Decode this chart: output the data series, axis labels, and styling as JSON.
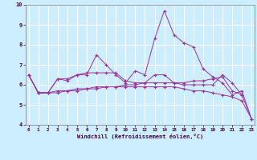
{
  "xlabel": "Windchill (Refroidissement éolien,°C)",
  "background_color": "#cceeff",
  "grid_color": "#aaddcc",
  "line_color": "#993399",
  "x": [
    0,
    1,
    2,
    3,
    4,
    5,
    6,
    7,
    8,
    9,
    10,
    11,
    12,
    13,
    14,
    15,
    16,
    17,
    18,
    19,
    20,
    21,
    22,
    23
  ],
  "line1": [
    6.5,
    5.6,
    5.6,
    6.3,
    6.2,
    6.5,
    6.5,
    7.5,
    7.0,
    6.5,
    6.1,
    6.7,
    6.5,
    8.3,
    9.7,
    8.5,
    8.1,
    7.9,
    6.8,
    6.4,
    6.1,
    5.5,
    5.7,
    4.3
  ],
  "line2": [
    6.5,
    5.6,
    5.6,
    6.3,
    6.3,
    6.5,
    6.6,
    6.6,
    6.6,
    6.6,
    6.2,
    6.1,
    6.1,
    6.5,
    6.5,
    6.1,
    6.0,
    6.0,
    6.0,
    6.0,
    6.5,
    6.1,
    5.5,
    null
  ],
  "line3": [
    6.5,
    5.6,
    5.6,
    5.7,
    5.7,
    5.8,
    5.8,
    5.9,
    5.9,
    5.9,
    6.0,
    6.0,
    6.1,
    6.1,
    6.1,
    6.1,
    6.1,
    6.2,
    6.2,
    6.3,
    6.4,
    5.7,
    5.5,
    4.3
  ],
  "line4": [
    6.5,
    5.6,
    5.6,
    5.6,
    5.7,
    5.7,
    5.8,
    5.8,
    5.9,
    5.9,
    5.9,
    5.9,
    5.9,
    5.9,
    5.9,
    5.9,
    5.8,
    5.7,
    5.7,
    5.6,
    5.5,
    5.4,
    5.2,
    4.3
  ],
  "ylim": [
    4,
    10
  ],
  "xlim": [
    -0.3,
    23.3
  ],
  "yticks": [
    4,
    5,
    6,
    7,
    8,
    9,
    10
  ],
  "xticks": [
    0,
    1,
    2,
    3,
    4,
    5,
    6,
    7,
    8,
    9,
    10,
    11,
    12,
    13,
    14,
    15,
    16,
    17,
    18,
    19,
    20,
    21,
    22,
    23
  ]
}
